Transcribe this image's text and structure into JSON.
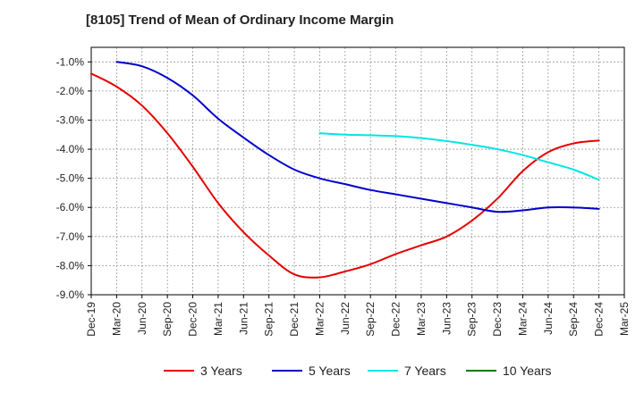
{
  "chart_data": {
    "type": "line",
    "title": "[8105]  Trend of Mean of Ordinary Income Margin",
    "xlabel": "",
    "ylabel": "",
    "x_ticks": [
      "Dec-19",
      "Mar-20",
      "Jun-20",
      "Sep-20",
      "Dec-20",
      "Mar-21",
      "Jun-21",
      "Sep-21",
      "Dec-21",
      "Mar-22",
      "Jun-22",
      "Sep-22",
      "Dec-22",
      "Mar-23",
      "Jun-23",
      "Sep-23",
      "Dec-23",
      "Mar-24",
      "Jun-24",
      "Sep-24",
      "Dec-24",
      "Mar-25"
    ],
    "y_ticks": [
      "-1.0%",
      "-2.0%",
      "-3.0%",
      "-4.0%",
      "-5.0%",
      "-6.0%",
      "-7.0%",
      "-8.0%",
      "-9.0%"
    ],
    "ylim": [
      -9.0,
      -0.5
    ],
    "grid": true,
    "legend_position": "bottom",
    "series": [
      {
        "name": "3 Years",
        "color": "#e60000",
        "x": [
          "Dec-19",
          "Mar-20",
          "Jun-20",
          "Sep-20",
          "Dec-20",
          "Mar-21",
          "Jun-21",
          "Sep-21",
          "Dec-21",
          "Mar-22",
          "Jun-22",
          "Sep-22",
          "Dec-22",
          "Mar-23",
          "Jun-23",
          "Sep-23",
          "Dec-23",
          "Mar-24",
          "Jun-24",
          "Sep-24",
          "Dec-24"
        ],
        "values": [
          -1.4,
          -1.85,
          -2.5,
          -3.45,
          -4.6,
          -5.85,
          -6.85,
          -7.65,
          -8.3,
          -8.4,
          -8.2,
          -7.95,
          -7.6,
          -7.3,
          -7.0,
          -6.45,
          -5.7,
          -4.75,
          -4.1,
          -3.8,
          -3.7
        ]
      },
      {
        "name": "5 Years",
        "color": "#0000cc",
        "x": [
          "Mar-20",
          "Jun-20",
          "Sep-20",
          "Dec-20",
          "Mar-21",
          "Jun-21",
          "Sep-21",
          "Dec-21",
          "Mar-22",
          "Jun-22",
          "Sep-22",
          "Dec-22",
          "Mar-23",
          "Jun-23",
          "Sep-23",
          "Dec-23",
          "Mar-24",
          "Jun-24",
          "Sep-24",
          "Dec-24"
        ],
        "values": [
          -1.0,
          -1.15,
          -1.55,
          -2.15,
          -2.95,
          -3.6,
          -4.2,
          -4.7,
          -5.0,
          -5.2,
          -5.4,
          -5.55,
          -5.7,
          -5.85,
          -6.0,
          -6.15,
          -6.1,
          -6.0,
          -6.0,
          -6.05
        ]
      },
      {
        "name": "7 Years",
        "color": "#00e5e5",
        "x": [
          "Mar-22",
          "Jun-22",
          "Sep-22",
          "Dec-22",
          "Mar-23",
          "Jun-23",
          "Sep-23",
          "Dec-23",
          "Mar-24",
          "Jun-24",
          "Sep-24",
          "Dec-24"
        ],
        "values": [
          -3.45,
          -3.5,
          -3.52,
          -3.55,
          -3.62,
          -3.72,
          -3.85,
          -4.0,
          -4.2,
          -4.45,
          -4.7,
          -5.05
        ]
      },
      {
        "name": "10 Years",
        "color": "#007a00",
        "x": [],
        "values": []
      }
    ]
  }
}
